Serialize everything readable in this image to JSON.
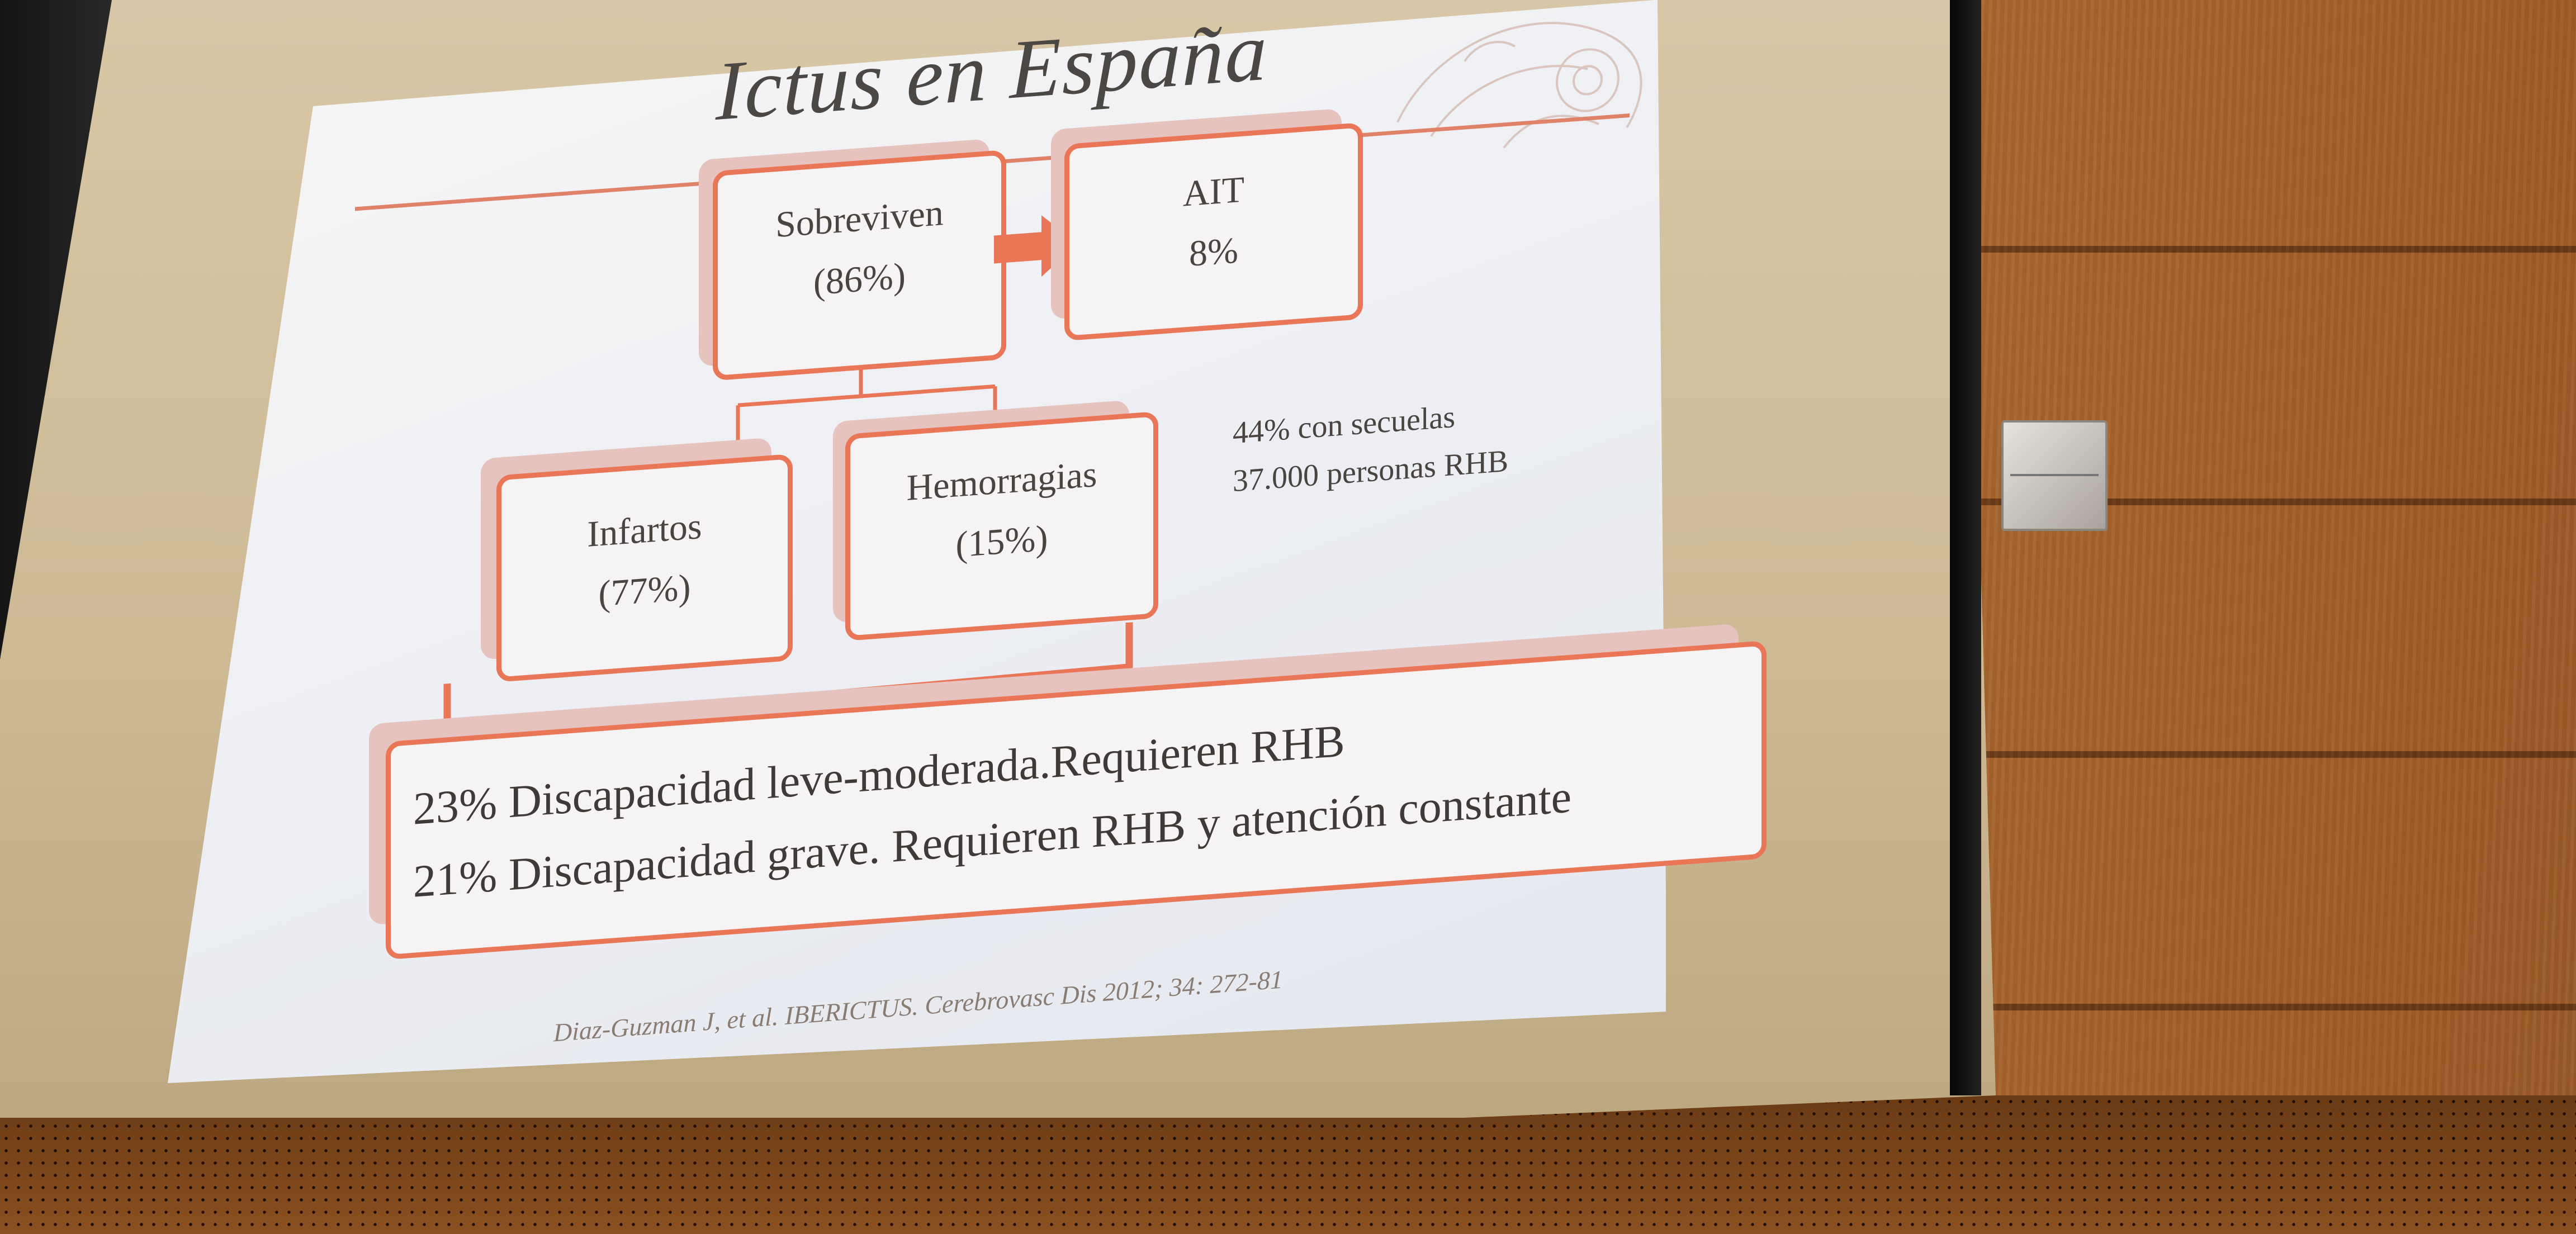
{
  "slide": {
    "title": "Ictus en España",
    "sobreviven": {
      "label": "Sobreviven",
      "value": "(86%)"
    },
    "ait": {
      "label": "AIT",
      "value": "8%"
    },
    "infartos": {
      "label": "Infartos",
      "value": "(77%)"
    },
    "hemorragias": {
      "label": "Hemorragias",
      "value": "(15%)"
    },
    "stats": {
      "secuelas": "44% con secuelas",
      "personas_rhb": "37.000 personas RHB"
    },
    "discapacidad": {
      "leve": "23% Discapacidad leve-moderada.Requieren RHB",
      "grave": "21% Discapacidad grave. Requieren RHB y atención constante"
    },
    "citation": "Diaz-Guzman J, et al. IBERICTUS. Cerebrovasc Dis 2012; 34: 272-81"
  },
  "colors": {
    "accent": "#ea7658",
    "box_shadow": "#e7c3c0",
    "slide_background": "#f5f3f3",
    "text": "#4a4440"
  }
}
